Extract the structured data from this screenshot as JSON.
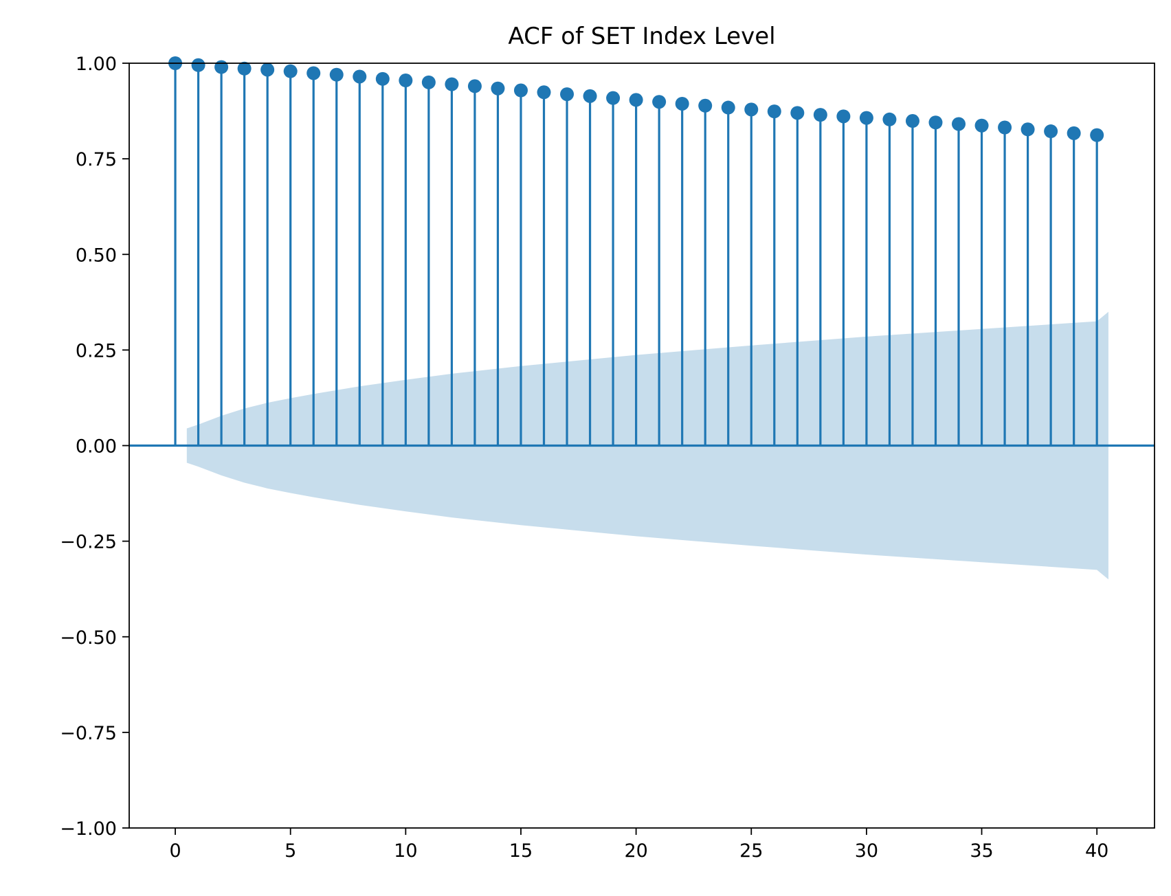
{
  "chart_data": {
    "type": "stem",
    "title": "ACF of SET Index Level",
    "xlabel": "",
    "ylabel": "",
    "xlim": [
      -2,
      42.5
    ],
    "ylim": [
      -1.0,
      1.0
    ],
    "x_ticks": [
      0,
      5,
      10,
      15,
      20,
      25,
      30,
      35,
      40
    ],
    "y_ticks": [
      1.0,
      0.75,
      0.5,
      0.25,
      0.0,
      -0.25,
      -0.5,
      -0.75,
      -1.0
    ],
    "y_tick_labels": [
      "1.00",
      "0.75",
      "0.50",
      "0.25",
      "0.00",
      "−0.25",
      "−0.50",
      "−0.75",
      "−1.00"
    ],
    "x_tick_labels": [
      "0",
      "5",
      "10",
      "15",
      "20",
      "25",
      "30",
      "35",
      "40"
    ],
    "grid": false,
    "series": [
      {
        "lags": [
          0,
          1,
          2,
          3,
          4,
          5,
          6,
          7,
          8,
          9,
          10,
          11,
          12,
          13,
          14,
          15,
          16,
          17,
          18,
          19,
          20,
          21,
          22,
          23,
          24,
          25,
          26,
          27,
          28,
          29,
          30,
          31,
          32,
          33,
          34,
          35,
          36,
          37,
          38,
          39,
          40
        ],
        "values": [
          1.0,
          0.995,
          0.99,
          0.986,
          0.983,
          0.979,
          0.974,
          0.97,
          0.965,
          0.959,
          0.955,
          0.95,
          0.945,
          0.94,
          0.934,
          0.929,
          0.924,
          0.919,
          0.914,
          0.909,
          0.904,
          0.899,
          0.894,
          0.889,
          0.884,
          0.879,
          0.874,
          0.87,
          0.865,
          0.861,
          0.857,
          0.853,
          0.849,
          0.845,
          0.841,
          0.837,
          0.832,
          0.827,
          0.822,
          0.817,
          0.812
        ]
      }
    ],
    "confidence_band": {
      "x": [
        0.5,
        1,
        2,
        3,
        4,
        5,
        6,
        8,
        10,
        12,
        15,
        20,
        25,
        30,
        35,
        40,
        40.5
      ],
      "upper": [
        0.045,
        0.055,
        0.078,
        0.097,
        0.112,
        0.124,
        0.135,
        0.155,
        0.172,
        0.188,
        0.208,
        0.237,
        0.262,
        0.285,
        0.305,
        0.325,
        0.35
      ]
    },
    "colors": {
      "stem": "#1f77b4",
      "band": "#1f77b4",
      "band_opacity": 0.25,
      "axis": "#000000"
    }
  }
}
